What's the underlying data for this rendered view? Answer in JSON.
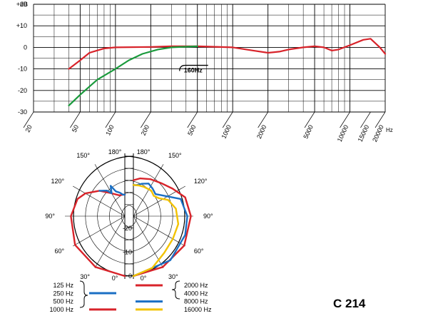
{
  "model": "C 214",
  "chart_data": [
    {
      "type": "line",
      "xscale": "log",
      "xlim": [
        20,
        20000
      ],
      "ylim": [
        -30,
        20
      ],
      "y_unit": "dB",
      "x_unit": "Hz",
      "y_ticks": [
        {
          "v": 20,
          "label": "+20"
        },
        {
          "v": 10,
          "label": "+10"
        },
        {
          "v": 0,
          "label": "0"
        },
        {
          "v": -10,
          "label": "-10"
        },
        {
          "v": -20,
          "label": "-20"
        },
        {
          "v": -30,
          "label": "-30"
        }
      ],
      "x_ticks": [
        {
          "v": 20,
          "label": "20"
        },
        {
          "v": 50,
          "label": "50"
        },
        {
          "v": 100,
          "label": "100"
        },
        {
          "v": 200,
          "label": "200"
        },
        {
          "v": 500,
          "label": "500"
        },
        {
          "v": 1000,
          "label": "1000"
        },
        {
          "v": 2000,
          "label": "2000"
        },
        {
          "v": 5000,
          "label": "5000"
        },
        {
          "v": 10000,
          "label": "10000"
        },
        {
          "v": 15000,
          "label": "15000"
        },
        {
          "v": 20000,
          "label": "20000"
        }
      ],
      "grid": true,
      "annotation": {
        "label": "160Hz",
        "x": 170,
        "y": -7
      },
      "series": [
        {
          "color": "#d8232a",
          "points": [
            [
              40,
              -10
            ],
            [
              50,
              -6
            ],
            [
              60,
              -2.5
            ],
            [
              80,
              -0.5
            ],
            [
              100,
              0
            ],
            [
              200,
              0.2
            ],
            [
              300,
              0.5
            ],
            [
              500,
              0.5
            ],
            [
              1000,
              0
            ],
            [
              1500,
              -1.5
            ],
            [
              2000,
              -2.5
            ],
            [
              2500,
              -2
            ],
            [
              3000,
              -1
            ],
            [
              4000,
              0
            ],
            [
              5000,
              0.5
            ],
            [
              6000,
              0
            ],
            [
              7000,
              -1.5
            ],
            [
              8000,
              -1
            ],
            [
              10000,
              1
            ],
            [
              13000,
              3.5
            ],
            [
              15000,
              4
            ],
            [
              18000,
              0
            ],
            [
              20000,
              -3
            ]
          ]
        },
        {
          "color": "#1a9a3c",
          "points": [
            [
              40,
              -27
            ],
            [
              50,
              -22
            ],
            [
              70,
              -15
            ],
            [
              100,
              -10
            ],
            [
              130,
              -6
            ],
            [
              170,
              -3
            ],
            [
              230,
              -1
            ],
            [
              300,
              0
            ],
            [
              400,
              0.3
            ],
            [
              500,
              0.5
            ]
          ]
        }
      ]
    },
    {
      "type": "polar",
      "angle_labels": [
        {
          "side": "left",
          "deg": 180,
          "label": "180°"
        },
        {
          "side": "left",
          "deg": 150,
          "label": "150°"
        },
        {
          "side": "left",
          "deg": 120,
          "label": "120°"
        },
        {
          "side": "left",
          "deg": 90,
          "label": "90°"
        },
        {
          "side": "left",
          "deg": 60,
          "label": "60°"
        },
        {
          "side": "left",
          "deg": 30,
          "label": "30°"
        },
        {
          "side": "left",
          "deg": 0,
          "label": "0°"
        },
        {
          "side": "right",
          "deg": 180,
          "label": "180°"
        },
        {
          "side": "right",
          "deg": 150,
          "label": "150°"
        },
        {
          "side": "right",
          "deg": 120,
          "label": "120°"
        },
        {
          "side": "right",
          "deg": 90,
          "label": "90°"
        },
        {
          "side": "right",
          "deg": 60,
          "label": "60°"
        },
        {
          "side": "right",
          "deg": 30,
          "label": "30°"
        },
        {
          "side": "right",
          "deg": 0,
          "label": "0°"
        }
      ],
      "rings_db": [
        0,
        -5,
        -10,
        -15,
        -20,
        -25
      ],
      "ring_labels": [
        {
          "db": -20,
          "label": "-20"
        },
        {
          "db": -10,
          "label": "-10"
        },
        {
          "db": 0,
          "label": "0"
        }
      ],
      "legend": {
        "left": [
          "125 Hz",
          "250 Hz",
          "500 Hz",
          "1000 Hz"
        ],
        "right": [
          "2000 Hz",
          "4000 Hz",
          "8000 Hz",
          "16000 Hz"
        ]
      },
      "series": [
        {
          "name": "125-500 Hz",
          "side": "left",
          "color": "#d8232a",
          "points": [
            [
              0,
              0
            ],
            [
              30,
              -0.5
            ],
            [
              60,
              -1
            ],
            [
              90,
              -2.5
            ],
            [
              110,
              -4
            ],
            [
              120,
              -6
            ],
            [
              135,
              -10
            ],
            [
              150,
              -14
            ],
            [
              165,
              -16
            ],
            [
              175,
              -16
            ],
            [
              180,
              -16
            ]
          ]
        },
        {
          "name": "1000 Hz",
          "side": "left",
          "color": "#1a6fc4",
          "points": [
            [
              135,
              -10
            ],
            [
              145,
              -12
            ],
            [
              150,
              -14
            ],
            [
              155,
              -11
            ],
            [
              160,
              -14
            ],
            [
              168,
              -15
            ],
            [
              175,
              -16
            ],
            [
              180,
              -16
            ]
          ]
        },
        {
          "name": "2000-4000 Hz",
          "side": "right",
          "color": "#d8232a",
          "points": [
            [
              0,
              0
            ],
            [
              30,
              -0.5
            ],
            [
              60,
              -0.5
            ],
            [
              90,
              -1
            ],
            [
              110,
              -2
            ],
            [
              125,
              -5
            ],
            [
              140,
              -7
            ],
            [
              155,
              -8
            ],
            [
              170,
              -9
            ],
            [
              180,
              -10
            ]
          ]
        },
        {
          "name": "8000 Hz",
          "side": "right",
          "color": "#1a6fc4",
          "points": [
            [
              0,
              0
            ],
            [
              40,
              -1
            ],
            [
              70,
              -2
            ],
            [
              90,
              -2.5
            ],
            [
              110,
              -4
            ],
            [
              125,
              -10
            ],
            [
              135,
              -12
            ],
            [
              145,
              -11
            ],
            [
              155,
              -10
            ],
            [
              165,
              -11
            ],
            [
              175,
              -12
            ],
            [
              180,
              -12
            ]
          ]
        },
        {
          "name": "16000 Hz",
          "side": "right",
          "color": "#f2c200",
          "points": [
            [
              0,
              0
            ],
            [
              20,
              -2
            ],
            [
              40,
              -5
            ],
            [
              60,
              -6
            ],
            [
              80,
              -6
            ],
            [
              100,
              -7
            ],
            [
              115,
              -9
            ],
            [
              125,
              -12
            ],
            [
              135,
              -13
            ],
            [
              145,
              -12
            ],
            [
              160,
              -12
            ],
            [
              170,
              -12
            ],
            [
              180,
              -12
            ]
          ]
        }
      ]
    }
  ]
}
